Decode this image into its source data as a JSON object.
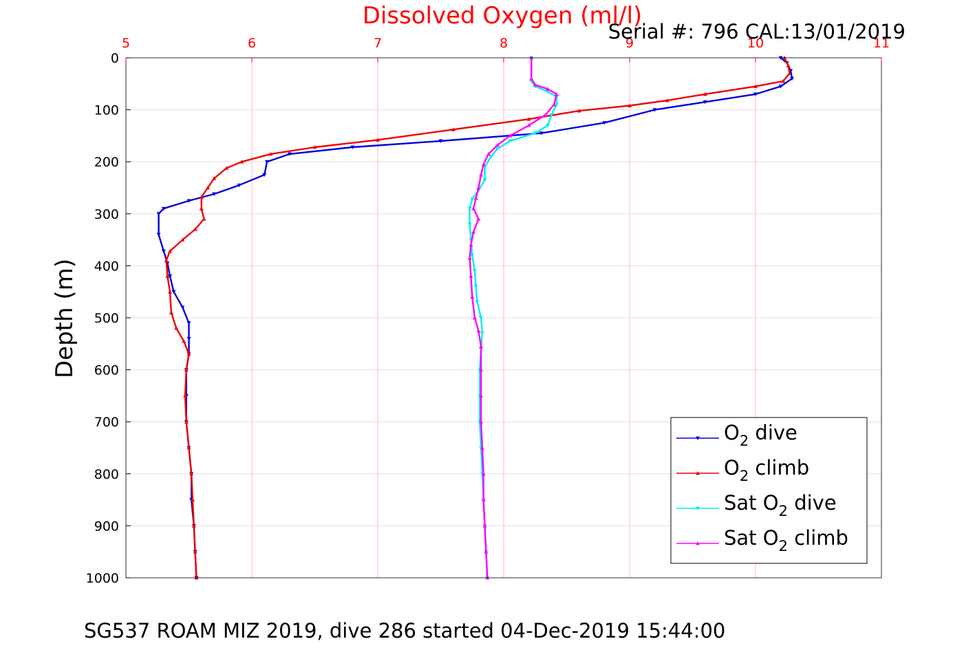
{
  "chart_data": {
    "type": "line",
    "title": "Dissolved Oxygen (ml/l)",
    "title_color": "#ff0000",
    "subtitle": "Serial #: 796  CAL:13/01/2019",
    "caption": "SG537 ROAM MIZ 2019, dive 286 started 04-Dec-2019 15:44:00",
    "ylabel": "Depth (m)",
    "xlim": [
      5,
      11
    ],
    "ylim": [
      0,
      1000
    ],
    "y_reversed": true,
    "x_axis_position": "top",
    "x_tick_color": "#ff0000",
    "x_grid_color": "#ffb6c1",
    "y_grid_color": "#e0e0e0",
    "grid": true,
    "x_ticks": [
      "5",
      "6",
      "7",
      "8",
      "9",
      "10",
      "11"
    ],
    "y_ticks": [
      "0",
      "100",
      "200",
      "300",
      "400",
      "500",
      "600",
      "700",
      "800",
      "900",
      "1000"
    ],
    "legend_position": "bottom-right",
    "series": [
      {
        "name_main": "O",
        "name_sub": "2",
        "name_rest": " dive",
        "color": "#0000dd",
        "marker": "triangle-down",
        "points": [
          [
            10.2,
            0
          ],
          [
            10.25,
            10
          ],
          [
            10.28,
            25
          ],
          [
            10.29,
            40
          ],
          [
            10.2,
            55
          ],
          [
            10.0,
            70
          ],
          [
            9.6,
            85
          ],
          [
            9.2,
            100
          ],
          [
            8.8,
            125
          ],
          [
            8.3,
            145
          ],
          [
            7.5,
            160
          ],
          [
            6.8,
            172
          ],
          [
            6.3,
            185
          ],
          [
            6.12,
            200
          ],
          [
            6.1,
            225
          ],
          [
            5.9,
            245
          ],
          [
            5.7,
            262
          ],
          [
            5.5,
            275
          ],
          [
            5.3,
            290
          ],
          [
            5.26,
            300
          ],
          [
            5.26,
            340
          ],
          [
            5.3,
            372
          ],
          [
            5.33,
            395
          ],
          [
            5.35,
            420
          ],
          [
            5.38,
            450
          ],
          [
            5.45,
            480
          ],
          [
            5.5,
            510
          ],
          [
            5.5,
            540
          ],
          [
            5.5,
            570
          ],
          [
            5.48,
            600
          ],
          [
            5.48,
            650
          ],
          [
            5.48,
            700
          ],
          [
            5.5,
            750
          ],
          [
            5.52,
            800
          ],
          [
            5.52,
            850
          ],
          [
            5.54,
            900
          ],
          [
            5.55,
            950
          ],
          [
            5.56,
            1000
          ]
        ]
      },
      {
        "name_main": "O",
        "name_sub": "2",
        "name_rest": " climb",
        "color": "#ee0000",
        "marker": "triangle-up",
        "points": [
          [
            10.23,
            0
          ],
          [
            10.26,
            15
          ],
          [
            10.27,
            30
          ],
          [
            10.22,
            45
          ],
          [
            10.0,
            55
          ],
          [
            9.6,
            70
          ],
          [
            9.3,
            82
          ],
          [
            9.0,
            92
          ],
          [
            8.6,
            102
          ],
          [
            8.2,
            118
          ],
          [
            7.6,
            138
          ],
          [
            7.0,
            158
          ],
          [
            6.5,
            172
          ],
          [
            6.15,
            185
          ],
          [
            5.92,
            200
          ],
          [
            5.8,
            212
          ],
          [
            5.7,
            232
          ],
          [
            5.65,
            250
          ],
          [
            5.6,
            268
          ],
          [
            5.6,
            290
          ],
          [
            5.62,
            310
          ],
          [
            5.55,
            330
          ],
          [
            5.45,
            350
          ],
          [
            5.35,
            372
          ],
          [
            5.32,
            390
          ],
          [
            5.33,
            420
          ],
          [
            5.35,
            450
          ],
          [
            5.36,
            490
          ],
          [
            5.4,
            520
          ],
          [
            5.46,
            545
          ],
          [
            5.5,
            570
          ],
          [
            5.48,
            600
          ],
          [
            5.47,
            650
          ],
          [
            5.48,
            700
          ],
          [
            5.5,
            750
          ],
          [
            5.52,
            800
          ],
          [
            5.53,
            850
          ],
          [
            5.54,
            900
          ],
          [
            5.55,
            950
          ],
          [
            5.56,
            1000
          ]
        ]
      },
      {
        "name_main": "Sat O",
        "name_sub": "2",
        "name_rest": " dive",
        "color": "#00eeee",
        "marker": "triangle-down",
        "points": [
          [
            8.22,
            0
          ],
          [
            8.22,
            45
          ],
          [
            8.25,
            55
          ],
          [
            8.35,
            65
          ],
          [
            8.42,
            75
          ],
          [
            8.42,
            90
          ],
          [
            8.38,
            110
          ],
          [
            8.35,
            130
          ],
          [
            8.25,
            145
          ],
          [
            8.05,
            160
          ],
          [
            7.95,
            175
          ],
          [
            7.9,
            190
          ],
          [
            7.85,
            210
          ],
          [
            7.85,
            235
          ],
          [
            7.8,
            255
          ],
          [
            7.75,
            272
          ],
          [
            7.73,
            290
          ],
          [
            7.73,
            320
          ],
          [
            7.74,
            350
          ],
          [
            7.75,
            380
          ],
          [
            7.77,
            410
          ],
          [
            7.78,
            440
          ],
          [
            7.79,
            470
          ],
          [
            7.82,
            500
          ],
          [
            7.83,
            530
          ],
          [
            7.82,
            560
          ],
          [
            7.81,
            600
          ],
          [
            7.81,
            650
          ],
          [
            7.81,
            700
          ],
          [
            7.82,
            750
          ],
          [
            7.83,
            800
          ],
          [
            7.84,
            850
          ],
          [
            7.85,
            900
          ],
          [
            7.86,
            950
          ],
          [
            7.87,
            1000
          ]
        ]
      },
      {
        "name_main": "Sat O",
        "name_sub": "2",
        "name_rest": " climb",
        "color": "#ff00ff",
        "marker": "triangle-up",
        "points": [
          [
            8.22,
            0
          ],
          [
            8.22,
            40
          ],
          [
            8.25,
            52
          ],
          [
            8.35,
            60
          ],
          [
            8.42,
            70
          ],
          [
            8.4,
            90
          ],
          [
            8.33,
            110
          ],
          [
            8.2,
            130
          ],
          [
            8.05,
            150
          ],
          [
            7.95,
            168
          ],
          [
            7.88,
            185
          ],
          [
            7.84,
            205
          ],
          [
            7.82,
            225
          ],
          [
            7.8,
            250
          ],
          [
            7.78,
            270
          ],
          [
            7.76,
            290
          ],
          [
            7.8,
            310
          ],
          [
            7.76,
            335
          ],
          [
            7.74,
            360
          ],
          [
            7.73,
            385
          ],
          [
            7.74,
            420
          ],
          [
            7.75,
            460
          ],
          [
            7.77,
            500
          ],
          [
            7.8,
            525
          ],
          [
            7.82,
            555
          ],
          [
            7.82,
            600
          ],
          [
            7.82,
            650
          ],
          [
            7.82,
            700
          ],
          [
            7.83,
            750
          ],
          [
            7.84,
            800
          ],
          [
            7.84,
            850
          ],
          [
            7.85,
            900
          ],
          [
            7.86,
            950
          ],
          [
            7.87,
            1000
          ]
        ]
      }
    ]
  }
}
